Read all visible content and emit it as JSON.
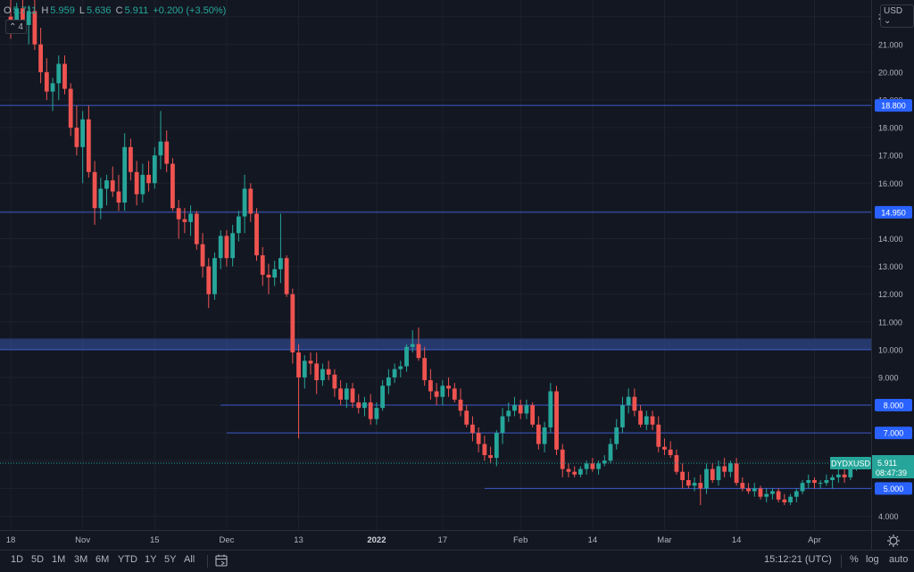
{
  "legend": {
    "open_label": "O",
    "open_value": "5.711",
    "high_label": "H",
    "high_value": "5.959",
    "low_label": "L",
    "low_value": "5.636",
    "close_label": "C",
    "close_value": "5.911",
    "change": "+0.200 (+3.50%)",
    "indicators_toggle_count": "4"
  },
  "currency_button": "USD",
  "price_axis": {
    "min": 3.5,
    "max": 22.6,
    "ticks": [
      "22.000",
      "21.000",
      "20.000",
      "19.000",
      "18.000",
      "17.000",
      "16.000",
      "15.000",
      "14.000",
      "13.000",
      "12.000",
      "11.000",
      "10.000",
      "9.000",
      "8.000",
      "7.000",
      "6.000",
      "5.000",
      "4.000"
    ],
    "tick_values": [
      22,
      21,
      20,
      19,
      18,
      17,
      16,
      15,
      14,
      13,
      12,
      11,
      10,
      9,
      8,
      7,
      6,
      5,
      4
    ],
    "labels": [
      {
        "price": 18.8,
        "text": "18.800"
      },
      {
        "price": 14.95,
        "text": "14.950"
      },
      {
        "price": 8.0,
        "text": "8.000"
      },
      {
        "price": 7.0,
        "text": "7.000"
      },
      {
        "price": 5.0,
        "text": "5.000"
      }
    ],
    "last_price": {
      "symbol": "DYDXUSD",
      "price": 5.911,
      "text": "5.911",
      "countdown": "08:47:39"
    }
  },
  "time_axis": {
    "labels": [
      "18",
      "Nov",
      "15",
      "Dec",
      "13",
      "2022",
      "17",
      "Feb",
      "14",
      "Mar",
      "14",
      "Apr"
    ],
    "label_index": [
      0,
      12,
      24,
      36,
      48,
      61,
      72,
      85,
      97,
      109,
      121,
      134
    ]
  },
  "bottom_bar": {
    "timeframes": [
      "1D",
      "5D",
      "1M",
      "3M",
      "6M",
      "YTD",
      "1Y",
      "5Y",
      "All"
    ],
    "clock": "15:12:21 (UTC)",
    "percent": "%",
    "log": "log",
    "auto": "auto"
  },
  "chart_data": {
    "type": "candlestick",
    "symbol": "DYDXUSD",
    "up_color": "#26a69a",
    "down_color": "#ef5350",
    "zone": {
      "low": 10.0,
      "high": 10.4
    },
    "horizontal_lines": [
      {
        "price": 18.8,
        "from_index": 0
      },
      {
        "price": 14.95,
        "from_index": 0
      },
      {
        "price": 8.0,
        "from_index": 35
      },
      {
        "price": 7.0,
        "from_index": 36
      },
      {
        "price": 5.0,
        "from_index": 79
      }
    ],
    "ohlc": [
      [
        22.0,
        22.6,
        21.2,
        21.6
      ],
      [
        21.6,
        22.5,
        21.4,
        22.3
      ],
      [
        22.3,
        22.6,
        21.5,
        21.7
      ],
      [
        21.7,
        22.4,
        21.0,
        22.2
      ],
      [
        22.2,
        22.6,
        20.8,
        21.0
      ],
      [
        21.0,
        21.6,
        19.6,
        20.0
      ],
      [
        20.0,
        20.5,
        19.0,
        19.3
      ],
      [
        19.3,
        19.8,
        18.6,
        19.6
      ],
      [
        19.6,
        20.6,
        19.0,
        20.3
      ],
      [
        20.3,
        20.6,
        19.2,
        19.4
      ],
      [
        19.4,
        19.6,
        17.7,
        18.0
      ],
      [
        18.0,
        18.8,
        17.0,
        17.3
      ],
      [
        17.3,
        18.6,
        16.0,
        18.3
      ],
      [
        18.3,
        18.8,
        16.2,
        16.4
      ],
      [
        16.4,
        16.8,
        14.5,
        15.1
      ],
      [
        15.1,
        16.2,
        14.7,
        15.8
      ],
      [
        15.8,
        16.3,
        15.2,
        16.1
      ],
      [
        16.1,
        16.6,
        15.5,
        15.7
      ],
      [
        15.7,
        16.3,
        15.0,
        15.3
      ],
      [
        15.3,
        17.8,
        15.0,
        17.3
      ],
      [
        17.3,
        17.6,
        16.1,
        16.4
      ],
      [
        16.4,
        16.8,
        15.2,
        15.6
      ],
      [
        15.6,
        16.7,
        15.3,
        16.3
      ],
      [
        16.3,
        16.8,
        15.7,
        16.0
      ],
      [
        16.0,
        17.3,
        15.8,
        17.0
      ],
      [
        17.0,
        18.6,
        16.5,
        17.5
      ],
      [
        17.5,
        17.9,
        16.4,
        16.7
      ],
      [
        16.7,
        16.9,
        15.0,
        15.1
      ],
      [
        15.1,
        15.4,
        14.0,
        14.7
      ],
      [
        14.7,
        15.1,
        14.2,
        14.6
      ],
      [
        14.6,
        15.2,
        14.1,
        14.9
      ],
      [
        14.9,
        15.0,
        13.6,
        13.8
      ],
      [
        13.8,
        14.2,
        12.6,
        13.0
      ],
      [
        13.0,
        13.3,
        11.5,
        12.0
      ],
      [
        12.0,
        13.5,
        11.8,
        13.3
      ],
      [
        13.3,
        14.3,
        12.9,
        14.1
      ],
      [
        14.1,
        14.3,
        13.0,
        13.3
      ],
      [
        13.3,
        14.5,
        13.0,
        14.2
      ],
      [
        14.2,
        15.0,
        13.9,
        14.8
      ],
      [
        14.8,
        16.3,
        14.2,
        15.8
      ],
      [
        15.8,
        16.0,
        14.6,
        14.9
      ],
      [
        14.9,
        15.1,
        13.2,
        13.4
      ],
      [
        13.4,
        13.7,
        12.3,
        12.7
      ],
      [
        12.7,
        13.1,
        12.0,
        12.6
      ],
      [
        12.6,
        13.2,
        12.3,
        12.9
      ],
      [
        12.9,
        14.9,
        12.4,
        13.3
      ],
      [
        13.3,
        13.4,
        11.9,
        12.0
      ],
      [
        12.0,
        12.2,
        9.5,
        9.9
      ],
      [
        9.9,
        10.2,
        6.8,
        9.0
      ],
      [
        9.0,
        9.8,
        8.6,
        9.6
      ],
      [
        9.6,
        9.9,
        9.1,
        9.5
      ],
      [
        9.5,
        9.9,
        8.4,
        8.9
      ],
      [
        8.9,
        9.5,
        8.7,
        9.3
      ],
      [
        9.3,
        9.6,
        8.9,
        9.1
      ],
      [
        9.1,
        9.3,
        8.3,
        8.6
      ],
      [
        8.6,
        8.9,
        8.0,
        8.2
      ],
      [
        8.2,
        8.8,
        7.9,
        8.6
      ],
      [
        8.6,
        8.8,
        7.9,
        8.1
      ],
      [
        8.1,
        8.4,
        7.7,
        7.9
      ],
      [
        7.9,
        8.3,
        7.6,
        8.1
      ],
      [
        8.1,
        8.4,
        7.3,
        7.5
      ],
      [
        7.5,
        8.1,
        7.3,
        7.9
      ],
      [
        7.9,
        8.9,
        7.8,
        8.7
      ],
      [
        8.7,
        9.3,
        8.4,
        9.0
      ],
      [
        9.0,
        9.5,
        8.8,
        9.3
      ],
      [
        9.3,
        9.6,
        9.0,
        9.4
      ],
      [
        9.4,
        10.2,
        9.2,
        10.1
      ],
      [
        10.1,
        10.7,
        9.9,
        10.2
      ],
      [
        10.2,
        10.8,
        9.6,
        9.7
      ],
      [
        9.7,
        10.1,
        8.7,
        8.9
      ],
      [
        8.9,
        9.3,
        8.2,
        8.5
      ],
      [
        8.5,
        8.8,
        8.0,
        8.3
      ],
      [
        8.3,
        8.9,
        8.0,
        8.7
      ],
      [
        8.7,
        9.0,
        8.3,
        8.6
      ],
      [
        8.6,
        8.8,
        8.1,
        8.2
      ],
      [
        8.2,
        8.6,
        7.6,
        7.8
      ],
      [
        7.8,
        8.0,
        7.2,
        7.3
      ],
      [
        7.3,
        7.6,
        6.7,
        7.0
      ],
      [
        7.0,
        7.2,
        6.3,
        6.6
      ],
      [
        6.6,
        6.9,
        6.0,
        6.2
      ],
      [
        6.2,
        6.5,
        5.9,
        6.1
      ],
      [
        6.1,
        7.1,
        5.8,
        7.0
      ],
      [
        7.0,
        7.9,
        6.6,
        7.6
      ],
      [
        7.6,
        8.1,
        7.4,
        7.8
      ],
      [
        7.8,
        8.3,
        7.6,
        8.0
      ],
      [
        8.0,
        8.2,
        7.5,
        7.7
      ],
      [
        7.7,
        8.2,
        7.5,
        8.0
      ],
      [
        8.0,
        8.1,
        7.2,
        7.3
      ],
      [
        7.3,
        7.6,
        6.4,
        6.6
      ],
      [
        6.6,
        7.4,
        6.3,
        7.2
      ],
      [
        7.2,
        8.8,
        7.0,
        8.5
      ],
      [
        8.5,
        8.7,
        6.2,
        6.4
      ],
      [
        6.4,
        6.6,
        5.4,
        5.7
      ],
      [
        5.7,
        5.9,
        5.4,
        5.6
      ],
      [
        5.6,
        5.8,
        5.4,
        5.5
      ],
      [
        5.5,
        5.8,
        5.4,
        5.7
      ],
      [
        5.7,
        6.0,
        5.5,
        5.9
      ],
      [
        5.9,
        6.1,
        5.6,
        5.7
      ],
      [
        5.7,
        6.0,
        5.5,
        5.9
      ],
      [
        5.9,
        6.2,
        5.8,
        6.0
      ],
      [
        6.0,
        6.8,
        5.9,
        6.6
      ],
      [
        6.6,
        7.5,
        6.4,
        7.2
      ],
      [
        7.2,
        8.3,
        7.0,
        8.0
      ],
      [
        8.0,
        8.6,
        7.7,
        8.3
      ],
      [
        8.3,
        8.6,
        7.6,
        7.8
      ],
      [
        7.8,
        8.0,
        7.2,
        7.3
      ],
      [
        7.3,
        7.8,
        7.1,
        7.6
      ],
      [
        7.6,
        7.8,
        7.1,
        7.3
      ],
      [
        7.3,
        7.6,
        6.3,
        6.5
      ],
      [
        6.5,
        6.8,
        6.2,
        6.4
      ],
      [
        6.4,
        6.7,
        6.1,
        6.2
      ],
      [
        6.2,
        6.4,
        5.5,
        5.6
      ],
      [
        5.6,
        5.9,
        5.0,
        5.3
      ],
      [
        5.3,
        5.6,
        5.0,
        5.1
      ],
      [
        5.1,
        5.4,
        4.9,
        5.2
      ],
      [
        5.2,
        5.5,
        4.4,
        5.0
      ],
      [
        5.0,
        5.9,
        4.8,
        5.7
      ],
      [
        5.7,
        5.9,
        5.2,
        5.3
      ],
      [
        5.3,
        6.0,
        5.1,
        5.8
      ],
      [
        5.8,
        6.1,
        5.4,
        5.6
      ],
      [
        5.6,
        6.0,
        5.4,
        5.9
      ],
      [
        5.9,
        6.1,
        5.1,
        5.2
      ],
      [
        5.2,
        5.4,
        4.9,
        5.0
      ],
      [
        5.0,
        5.2,
        4.8,
        4.9
      ],
      [
        4.9,
        5.2,
        4.7,
        5.0
      ],
      [
        5.0,
        5.1,
        4.6,
        4.7
      ],
      [
        4.7,
        5.0,
        4.5,
        4.8
      ],
      [
        4.8,
        5.0,
        4.6,
        4.9
      ],
      [
        4.9,
        5.0,
        4.5,
        4.6
      ],
      [
        4.6,
        4.8,
        4.4,
        4.5
      ],
      [
        4.5,
        4.8,
        4.4,
        4.7
      ],
      [
        4.7,
        5.0,
        4.5,
        4.9
      ],
      [
        4.9,
        5.3,
        4.8,
        5.2
      ],
      [
        5.2,
        5.5,
        5.0,
        5.3
      ],
      [
        5.3,
        5.4,
        5.0,
        5.2
      ],
      [
        5.2,
        5.3,
        5.0,
        5.2
      ],
      [
        5.2,
        5.5,
        5.1,
        5.3
      ],
      [
        5.3,
        5.5,
        5.0,
        5.4
      ],
      [
        5.4,
        5.8,
        5.2,
        5.5
      ],
      [
        5.5,
        5.7,
        5.2,
        5.4
      ],
      [
        5.4,
        5.9,
        5.3,
        5.7
      ],
      [
        5.711,
        5.959,
        5.636,
        5.911
      ]
    ]
  }
}
